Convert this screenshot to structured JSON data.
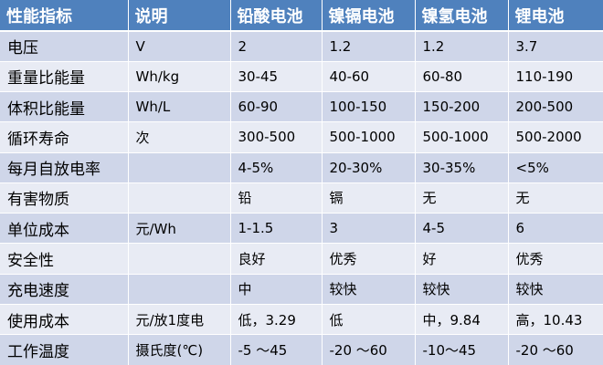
{
  "table": {
    "headers": [
      "性能指标",
      "说明",
      "铅酸电池",
      "镍镉电池",
      "镍氢电池",
      "锂电池"
    ],
    "rows": [
      [
        "电压",
        "V",
        "2",
        "1.2",
        "1.2",
        "3.7"
      ],
      [
        "重量比能量",
        "Wh/kg",
        "30-45",
        "40-60",
        "60-80",
        "110-190"
      ],
      [
        "体积比能量",
        "Wh/L",
        "60-90",
        "100-150",
        "150-200",
        "200-500"
      ],
      [
        "循环寿命",
        "次",
        "300-500",
        "500-1000",
        "500-1000",
        "500-2000"
      ],
      [
        "每月自放电率",
        "",
        "4-5%",
        "20-30%",
        "30-35%",
        "<5%"
      ],
      [
        "有害物质",
        "",
        "铅",
        "镉",
        "无",
        "无"
      ],
      [
        "单位成本",
        "元/Wh",
        "1-1.5",
        "3",
        "4-5",
        "6"
      ],
      [
        "安全性",
        "",
        "良好",
        "优秀",
        "好",
        "优秀"
      ],
      [
        "充电速度",
        "",
        "中",
        "较快",
        "较快",
        "较快"
      ],
      [
        "使用成本",
        "元/放1度电",
        "低，3.29",
        "低",
        "中，9.84",
        "高，10.43"
      ],
      [
        "工作温度",
        "摄氏度(℃)",
        "-5 ～45",
        "-20 ～60",
        "-10～45",
        "-20 ～60"
      ]
    ]
  },
  "colors": {
    "header_bg": "#4f81bd",
    "header_text": "#ffffff",
    "row_dark": "#cfd6e9",
    "row_light": "#e8ebf4"
  }
}
